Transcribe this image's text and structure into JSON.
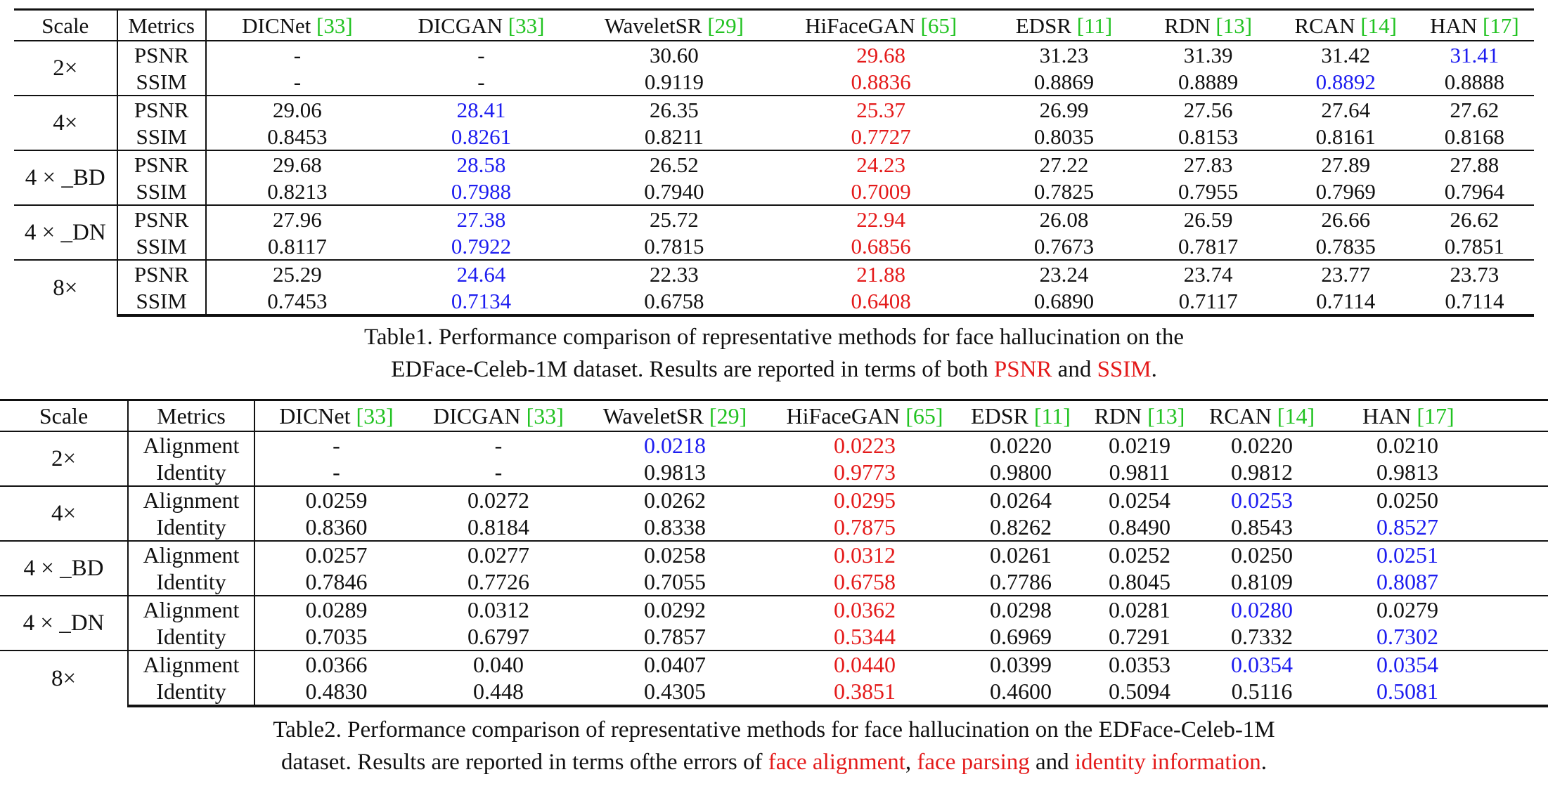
{
  "table1": {
    "header": {
      "scale": "Scale",
      "metrics": "Metrics",
      "methods": [
        {
          "name": "DICNet ",
          "ref": "[33]"
        },
        {
          "name": "DICGAN ",
          "ref": "[33]"
        },
        {
          "name": "WaveletSR ",
          "ref": "[29]"
        },
        {
          "name": "HiFaceGAN ",
          "ref": "[65]"
        },
        {
          "name": "EDSR ",
          "ref": "[11]"
        },
        {
          "name": "RDN ",
          "ref": "[13]"
        },
        {
          "name": "RCAN ",
          "ref": "[14]"
        },
        {
          "name": "HAN ",
          "ref": "[17]"
        }
      ]
    },
    "groups": [
      {
        "scale": "2×",
        "rows": [
          {
            "metric": "PSNR",
            "values": [
              "-",
              "-",
              "30.60",
              "29.68",
              "31.23",
              "31.39",
              "31.42",
              "31.41"
            ]
          },
          {
            "metric": "SSIM",
            "values": [
              "-",
              "-",
              "0.9119",
              "0.8836",
              "0.8869",
              "0.8889",
              "0.8892",
              "0.8888"
            ]
          }
        ]
      },
      {
        "scale": "4×",
        "rows": [
          {
            "metric": "PSNR",
            "values": [
              "29.06",
              "28.41",
              "26.35",
              "25.37",
              "26.99",
              "27.56",
              "27.64",
              "27.62"
            ]
          },
          {
            "metric": "SSIM",
            "values": [
              "0.8453",
              "0.8261",
              "0.8211",
              "0.7727",
              "0.8035",
              "0.8153",
              "0.8161",
              "0.8168"
            ]
          }
        ]
      },
      {
        "scale": "4 × _BD",
        "rows": [
          {
            "metric": "PSNR",
            "values": [
              "29.68",
              "28.58",
              "26.52",
              "24.23",
              "27.22",
              "27.83",
              "27.89",
              "27.88"
            ]
          },
          {
            "metric": "SSIM",
            "values": [
              "0.8213",
              "0.7988",
              "0.7940",
              "0.7009",
              "0.7825",
              "0.7955",
              "0.7969",
              "0.7964"
            ]
          }
        ]
      },
      {
        "scale": "4 × _DN",
        "rows": [
          {
            "metric": "PSNR",
            "values": [
              "27.96",
              "27.38",
              "25.72",
              "22.94",
              "26.08",
              "26.59",
              "26.66",
              "26.62"
            ]
          },
          {
            "metric": "SSIM",
            "values": [
              "0.8117",
              "0.7922",
              "0.7815",
              "0.6856",
              "0.7673",
              "0.7817",
              "0.7835",
              "0.7851"
            ]
          }
        ]
      },
      {
        "scale": "8×",
        "rows": [
          {
            "metric": "PSNR",
            "values": [
              "25.29",
              "24.64",
              "22.33",
              "21.88",
              "23.24",
              "23.74",
              "23.77",
              "23.73"
            ]
          },
          {
            "metric": "SSIM",
            "values": [
              "0.7453",
              "0.7134",
              "0.6758",
              "0.6408",
              "0.6890",
              "0.7117",
              "0.7114",
              "0.7114"
            ]
          }
        ]
      }
    ],
    "caption": {
      "line1": "Table1. Performance comparison of representative methods for face hallucination on the",
      "line2_a": "EDFace-Celeb-1M dataset. Results are reported in terms of both ",
      "psnr": "PSNR",
      "and": " and ",
      "ssim": "SSIM",
      "end": "."
    }
  },
  "table2": {
    "header": {
      "scale": "Scale",
      "metrics": "Metrics",
      "methods": [
        {
          "name": "DICNet ",
          "ref": "[33]"
        },
        {
          "name": "DICGAN ",
          "ref": "[33]"
        },
        {
          "name": "WaveletSR ",
          "ref": "[29]"
        },
        {
          "name": "HiFaceGAN ",
          "ref": "[65]"
        },
        {
          "name": "EDSR ",
          "ref": "[11]"
        },
        {
          "name": "RDN ",
          "ref": "[13]"
        },
        {
          "name": "RCAN ",
          "ref": "[14]"
        },
        {
          "name": "HAN ",
          "ref": "[17]"
        }
      ]
    },
    "groups": [
      {
        "scale": "2×",
        "rows": [
          {
            "metric": "Alignment",
            "values": [
              "-",
              "-",
              "0.0218",
              "0.0223",
              "0.0220",
              "0.0219",
              "0.0220",
              "0.0210"
            ]
          },
          {
            "metric": "Identity",
            "values": [
              "-",
              "-",
              "0.9813",
              "0.9773",
              "0.9800",
              "0.9811",
              "0.9812",
              "0.9813"
            ]
          }
        ]
      },
      {
        "scale": "4×",
        "rows": [
          {
            "metric": "Alignment",
            "values": [
              "0.0259",
              "0.0272",
              "0.0262",
              "0.0295",
              "0.0264",
              "0.0254",
              "0.0253",
              "0.0250"
            ]
          },
          {
            "metric": "Identity",
            "values": [
              "0.8360",
              "0.8184",
              "0.8338",
              "0.7875",
              "0.8262",
              "0.8490",
              "0.8543",
              "0.8527"
            ]
          }
        ]
      },
      {
        "scale": "4 × _BD",
        "rows": [
          {
            "metric": "Alignment",
            "values": [
              "0.0257",
              "0.0277",
              "0.0258",
              "0.0312",
              "0.0261",
              "0.0252",
              "0.0250",
              "0.0251"
            ]
          },
          {
            "metric": "Identity",
            "values": [
              "0.7846",
              "0.7726",
              "0.7055",
              "0.6758",
              "0.7786",
              "0.8045",
              "0.8109",
              "0.8087"
            ]
          }
        ]
      },
      {
        "scale": "4 × _DN",
        "rows": [
          {
            "metric": "Alignment",
            "values": [
              "0.0289",
              "0.0312",
              "0.0292",
              "0.0362",
              "0.0298",
              "0.0281",
              "0.0280",
              "0.0279"
            ]
          },
          {
            "metric": "Identity",
            "values": [
              "0.7035",
              "0.6797",
              "0.7857",
              "0.5344",
              "0.6969",
              "0.7291",
              "0.7332",
              "0.7302"
            ]
          }
        ]
      },
      {
        "scale": "8×",
        "rows": [
          {
            "metric": "Alignment",
            "values": [
              "0.0366",
              "0.040",
              "0.0407",
              "0.0440",
              "0.0399",
              "0.0353",
              "0.0354",
              "0.0354"
            ]
          },
          {
            "metric": "Identity",
            "values": [
              "0.4830",
              "0.448",
              "0.4305",
              "0.3851",
              "0.4600",
              "0.5094",
              "0.5116",
              "0.5081"
            ]
          }
        ]
      }
    ],
    "caption": {
      "line1": "Table2. Performance comparison of representative methods for face hallucination on the EDFace-Celeb-1M",
      "line2_a": "dataset. Results are reported in terms ofthe errors of ",
      "face_alignment": "face alignment",
      "comma": ", ",
      "face_parsing": "face parsing",
      "and": " and ",
      "identity_information": "identity information",
      "end": "."
    }
  },
  "styles": {
    "best": "bold",
    "second_color": "#1d1df0",
    "worst_color": "#e41a1a",
    "citation_color": "#22c322"
  }
}
